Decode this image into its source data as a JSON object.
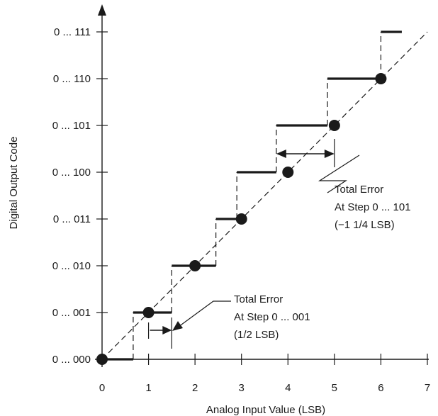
{
  "chart_data": {
    "type": "line",
    "title": "",
    "xlabel": "Analog Input Value (LSB)",
    "ylabel": "Digital Output Code",
    "x_ticks": [
      "0",
      "1",
      "2",
      "3",
      "4",
      "5",
      "6",
      "7"
    ],
    "y_ticks": [
      "0 ... 000",
      "0 ... 001",
      "0 ... 010",
      "0 ... 011",
      "0 ... 100",
      "0 ... 101",
      "0 ... 110",
      "0 ... 111"
    ],
    "xlim": [
      0,
      7
    ],
    "ylim": [
      0,
      7
    ],
    "grid": false,
    "ideal_line": {
      "from": [
        0,
        0
      ],
      "to": [
        7,
        7
      ]
    },
    "transfer_steps": [
      {
        "code": 0,
        "x_start": 0.0,
        "x_end": 0.67
      },
      {
        "code": 1,
        "x_start": 0.67,
        "x_end": 1.5
      },
      {
        "code": 2,
        "x_start": 1.5,
        "x_end": 2.45
      },
      {
        "code": 3,
        "x_start": 2.45,
        "x_end": 2.9
      },
      {
        "code": 4,
        "x_start": 2.9,
        "x_end": 3.75
      },
      {
        "code": 5,
        "x_start": 3.75,
        "x_end": 4.85
      },
      {
        "code": 6,
        "x_start": 4.85,
        "x_end": 6.0
      },
      {
        "code": 7,
        "x_start": 6.0,
        "x_end": 6.45
      }
    ],
    "points": [
      {
        "x": 0,
        "y": 0
      },
      {
        "x": 1,
        "y": 1
      },
      {
        "x": 2,
        "y": 2
      },
      {
        "x": 3,
        "y": 3
      },
      {
        "x": 4,
        "y": 4
      },
      {
        "x": 5,
        "y": 5
      },
      {
        "x": 6,
        "y": 6
      }
    ],
    "annotations": [
      {
        "lines": [
          "Total Error",
          "At Step 0 ... 101",
          "(−1 1/4 LSB)"
        ],
        "error_span_x": [
          3.75,
          5.0
        ],
        "error_code": 5
      },
      {
        "lines": [
          "Total Error",
          "At Step 0 ... 001",
          "(1/2 LSB)"
        ],
        "error_span_x": [
          1.0,
          1.5
        ],
        "error_code": 1
      }
    ]
  }
}
